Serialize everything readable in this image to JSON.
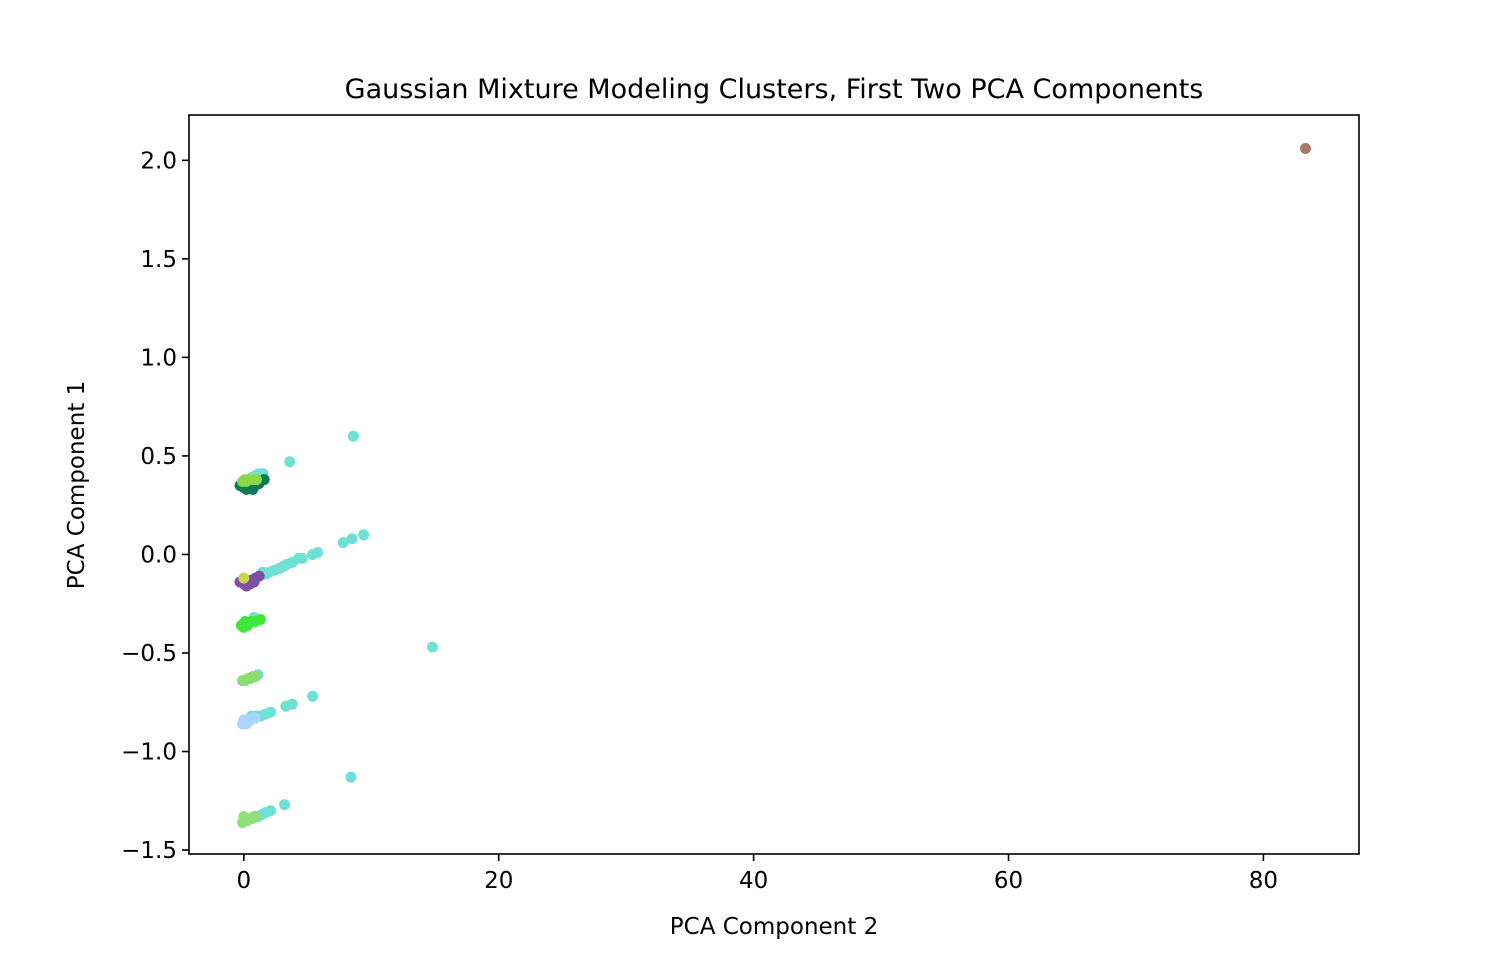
{
  "chart_data": {
    "type": "scatter",
    "title": "Gaussian Mixture Modeling Clusters, First Two PCA Components",
    "xlabel": "PCA Component 2",
    "ylabel": "PCA Component 1",
    "xlim": [
      -4.3,
      87.5
    ],
    "ylim": [
      -1.52,
      2.23
    ],
    "xticks": [
      0,
      20,
      40,
      60,
      80
    ],
    "yticks": [
      -1.5,
      -1.0,
      -0.5,
      0.0,
      0.5,
      1.0,
      1.5,
      2.0
    ],
    "xtick_labels": [
      "0",
      "20",
      "40",
      "60",
      "80"
    ],
    "ytick_labels": [
      "−1.5",
      "−1.0",
      "−0.5",
      "0.0",
      "0.5",
      "1.0",
      "1.5",
      "2.0"
    ],
    "grid": false,
    "legend": "none",
    "series": [
      {
        "color": "#6ee0d4",
        "points": [
          [
            8.6,
            0.6
          ],
          [
            3.6,
            0.47
          ],
          [
            1.2,
            0.41
          ],
          [
            1.5,
            0.41
          ],
          [
            0.9,
            0.4
          ],
          [
            0.6,
            0.39
          ],
          [
            9.4,
            0.1
          ],
          [
            8.5,
            0.08
          ],
          [
            7.8,
            0.06
          ],
          [
            5.8,
            0.01
          ],
          [
            5.4,
            0.0
          ],
          [
            4.6,
            -0.02
          ],
          [
            4.3,
            -0.02
          ],
          [
            3.8,
            -0.04
          ],
          [
            3.4,
            -0.05
          ],
          [
            3.1,
            -0.06
          ],
          [
            2.8,
            -0.07
          ],
          [
            2.4,
            -0.08
          ],
          [
            2.0,
            -0.09
          ],
          [
            1.7,
            -0.1
          ],
          [
            1.5,
            -0.09
          ],
          [
            0.8,
            -0.32
          ],
          [
            1.0,
            -0.33
          ],
          [
            14.8,
            -0.47
          ],
          [
            1.1,
            -0.61
          ],
          [
            5.4,
            -0.72
          ],
          [
            3.8,
            -0.76
          ],
          [
            3.3,
            -0.77
          ],
          [
            2.1,
            -0.8
          ],
          [
            1.7,
            -0.81
          ],
          [
            1.3,
            -0.82
          ],
          [
            1.0,
            -0.82
          ],
          [
            0.6,
            -0.82
          ],
          [
            8.4,
            -1.13
          ],
          [
            3.2,
            -1.27
          ],
          [
            2.1,
            -1.3
          ],
          [
            1.7,
            -1.31
          ],
          [
            1.4,
            -1.32
          ],
          [
            1.1,
            -1.33
          ],
          [
            0.8,
            -1.33
          ]
        ]
      },
      {
        "color": "#0e7a57",
        "points": [
          [
            -0.3,
            0.35
          ],
          [
            0.0,
            0.34
          ],
          [
            0.3,
            0.35
          ],
          [
            0.6,
            0.34
          ],
          [
            0.9,
            0.35
          ],
          [
            1.2,
            0.36
          ],
          [
            1.6,
            0.38
          ],
          [
            0.1,
            0.36
          ],
          [
            0.5,
            0.36
          ],
          [
            0.8,
            0.37
          ],
          [
            0.2,
            0.33
          ],
          [
            0.7,
            0.33
          ]
        ]
      },
      {
        "color": "#8bd84a",
        "points": [
          [
            -0.1,
            0.37
          ],
          [
            0.2,
            0.37
          ],
          [
            0.4,
            0.38
          ],
          [
            0.7,
            0.38
          ],
          [
            1.0,
            0.38
          ],
          [
            0.1,
            0.38
          ]
        ]
      },
      {
        "color": "#7e4fa6",
        "points": [
          [
            -0.3,
            -0.14
          ],
          [
            0.0,
            -0.15
          ],
          [
            0.3,
            -0.14
          ],
          [
            0.6,
            -0.13
          ],
          [
            0.9,
            -0.12
          ],
          [
            1.2,
            -0.11
          ],
          [
            0.2,
            -0.16
          ],
          [
            0.5,
            -0.15
          ],
          [
            0.8,
            -0.14
          ]
        ]
      },
      {
        "color": "#c8d84a",
        "points": [
          [
            0.0,
            -0.12
          ]
        ]
      },
      {
        "color": "#3ee83a",
        "points": [
          [
            -0.2,
            -0.36
          ],
          [
            0.0,
            -0.37
          ],
          [
            0.2,
            -0.35
          ],
          [
            0.4,
            -0.35
          ],
          [
            0.6,
            -0.34
          ],
          [
            0.9,
            -0.34
          ],
          [
            1.3,
            -0.33
          ],
          [
            0.1,
            -0.34
          ],
          [
            0.3,
            -0.36
          ]
        ]
      },
      {
        "color": "#88e070",
        "points": [
          [
            -0.1,
            -0.64
          ],
          [
            0.1,
            -0.64
          ],
          [
            0.3,
            -0.63
          ],
          [
            0.5,
            -0.63
          ],
          [
            0.7,
            -0.62
          ],
          [
            0.9,
            -0.62
          ]
        ]
      },
      {
        "color": "#a8d4ff",
        "points": [
          [
            -0.1,
            -0.86
          ],
          [
            0.1,
            -0.85
          ],
          [
            0.3,
            -0.84
          ],
          [
            0.5,
            -0.84
          ],
          [
            0.7,
            -0.83
          ],
          [
            0.9,
            -0.83
          ],
          [
            0.2,
            -0.86
          ],
          [
            0.0,
            -0.84
          ]
        ]
      },
      {
        "color": "#8fe07a",
        "points": [
          [
            -0.1,
            -1.36
          ],
          [
            0.1,
            -1.35
          ],
          [
            0.3,
            -1.35
          ],
          [
            0.5,
            -1.34
          ],
          [
            0.7,
            -1.34
          ],
          [
            0.9,
            -1.33
          ],
          [
            0.0,
            -1.33
          ]
        ]
      },
      {
        "color": "#a87a6a",
        "points": [
          [
            83.3,
            2.06
          ]
        ]
      }
    ]
  }
}
